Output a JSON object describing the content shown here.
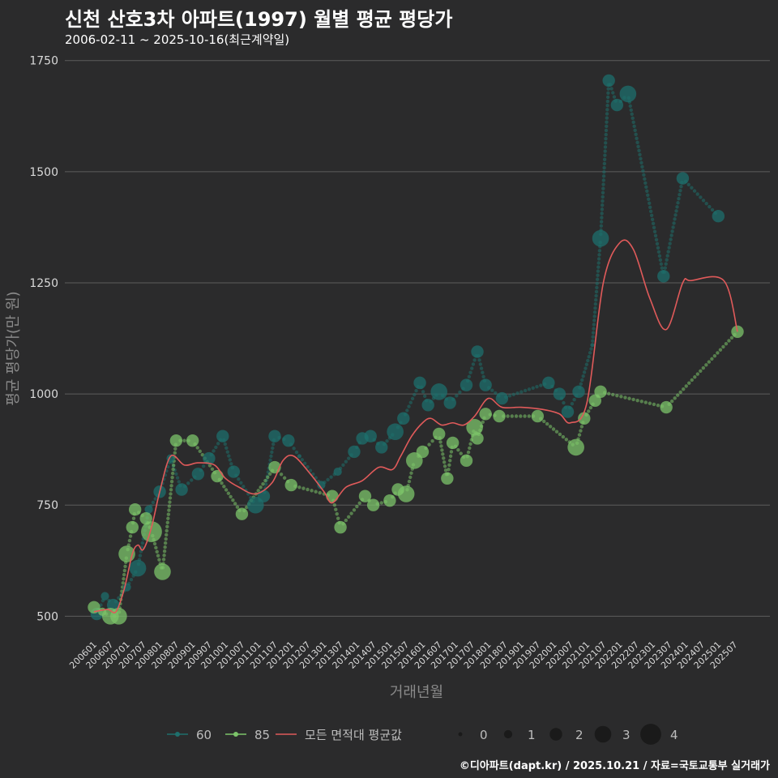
{
  "header": {
    "title": "신천 산호3차 아파트(1997) 월별 평균 평당가",
    "subtitle": "2006-02-11 ~ 2025-10-16(최근계약일)"
  },
  "caption": "©디아파트(dapt.kr) / 2025.10.21 / 자료=국토교통부 실거래가",
  "colors": {
    "background": "#2b2b2c",
    "grid": "#5c5c5c",
    "series_60": "#1e6f6c",
    "series_85": "#7cc46a",
    "average": "#e05a5a"
  },
  "chart_data": {
    "type": "line",
    "title": "신천 산호3차 아파트(1997) 월별 평균 평당가",
    "xlabel": "거래년월",
    "ylabel": "평균 평당가(만 원)",
    "ylim": [
      455,
      1755
    ],
    "yticks": [
      500,
      750,
      1000,
      1250,
      1500,
      1750
    ],
    "x_tick_labels": [
      "200601",
      "200607",
      "200701",
      "200707",
      "200801",
      "200807",
      "200901",
      "200907",
      "201001",
      "201007",
      "201101",
      "201107",
      "201201",
      "201207",
      "201301",
      "201307",
      "201401",
      "201407",
      "201501",
      "201507",
      "201601",
      "201607",
      "201701",
      "201707",
      "201801",
      "201807",
      "201901",
      "201907",
      "202001",
      "202007",
      "202101",
      "202107",
      "202201",
      "202207",
      "202301",
      "202307",
      "202401",
      "202407",
      "202501",
      "202507"
    ],
    "grid": "horizontal",
    "series": [
      {
        "name": "60",
        "points": [
          {
            "x": "2006-02",
            "y": 505,
            "size": 2
          },
          {
            "x": "2006-05",
            "y": 545,
            "size": 1
          },
          {
            "x": "2006-08",
            "y": 525,
            "size": 2
          },
          {
            "x": "2007-01",
            "y": 565,
            "size": 1
          },
          {
            "x": "2007-05",
            "y": 608,
            "size": 3
          },
          {
            "x": "2007-09",
            "y": 740,
            "size": 1
          },
          {
            "x": "2008-01",
            "y": 780,
            "size": 2
          },
          {
            "x": "2008-05",
            "y": 855,
            "size": 1
          },
          {
            "x": "2008-09",
            "y": 785,
            "size": 2
          },
          {
            "x": "2009-03",
            "y": 820,
            "size": 2
          },
          {
            "x": "2009-07",
            "y": 855,
            "size": 2
          },
          {
            "x": "2009-12",
            "y": 905,
            "size": 2
          },
          {
            "x": "2010-04",
            "y": 825,
            "size": 2
          },
          {
            "x": "2010-12",
            "y": 750,
            "size": 3
          },
          {
            "x": "2011-03",
            "y": 770,
            "size": 2
          },
          {
            "x": "2011-07",
            "y": 905,
            "size": 2
          },
          {
            "x": "2011-12",
            "y": 895,
            "size": 2
          },
          {
            "x": "2012-04",
            "y": 860,
            "size": 0
          },
          {
            "x": "2012-12",
            "y": 795,
            "size": 1
          },
          {
            "x": "2013-06",
            "y": 825,
            "size": 1
          },
          {
            "x": "2013-12",
            "y": 870,
            "size": 2
          },
          {
            "x": "2014-03",
            "y": 900,
            "size": 2
          },
          {
            "x": "2014-06",
            "y": 905,
            "size": 2
          },
          {
            "x": "2014-10",
            "y": 880,
            "size": 2
          },
          {
            "x": "2015-03",
            "y": 915,
            "size": 3
          },
          {
            "x": "2015-06",
            "y": 945,
            "size": 2
          },
          {
            "x": "2015-12",
            "y": 1025,
            "size": 2
          },
          {
            "x": "2016-03",
            "y": 975,
            "size": 2
          },
          {
            "x": "2016-07",
            "y": 1005,
            "size": 3
          },
          {
            "x": "2016-11",
            "y": 980,
            "size": 2
          },
          {
            "x": "2017-05",
            "y": 1020,
            "size": 2
          },
          {
            "x": "2017-09",
            "y": 1095,
            "size": 2
          },
          {
            "x": "2017-12",
            "y": 1020,
            "size": 2
          },
          {
            "x": "2018-06",
            "y": 990,
            "size": 2
          },
          {
            "x": "2019-11",
            "y": 1025,
            "size": 2
          },
          {
            "x": "2020-03",
            "y": 1000,
            "size": 2
          },
          {
            "x": "2020-06",
            "y": 960,
            "size": 2
          },
          {
            "x": "2020-10",
            "y": 1005,
            "size": 2
          },
          {
            "x": "2021-03",
            "y": 1110,
            "size": 0
          },
          {
            "x": "2021-06",
            "y": 1350,
            "size": 3
          },
          {
            "x": "2021-09",
            "y": 1705,
            "size": 2
          },
          {
            "x": "2021-12",
            "y": 1650,
            "size": 2
          },
          {
            "x": "2022-04",
            "y": 1675,
            "size": 3
          },
          {
            "x": "2023-05",
            "y": 1265,
            "size": 2
          },
          {
            "x": "2023-12",
            "y": 1485,
            "size": 2
          },
          {
            "x": "2025-01",
            "y": 1400,
            "size": 2
          }
        ]
      },
      {
        "name": "85",
        "points": [
          {
            "x": "2006-01",
            "y": 520,
            "size": 2
          },
          {
            "x": "2006-04",
            "y": 510,
            "size": 1
          },
          {
            "x": "2006-07",
            "y": 500,
            "size": 3
          },
          {
            "x": "2006-10",
            "y": 500,
            "size": 3
          },
          {
            "x": "2007-01",
            "y": 640,
            "size": 3
          },
          {
            "x": "2007-03",
            "y": 700,
            "size": 2
          },
          {
            "x": "2007-04",
            "y": 740,
            "size": 2
          },
          {
            "x": "2007-08",
            "y": 720,
            "size": 2
          },
          {
            "x": "2007-10",
            "y": 690,
            "size": 4
          },
          {
            "x": "2008-02",
            "y": 600,
            "size": 3
          },
          {
            "x": "2008-07",
            "y": 895,
            "size": 2
          },
          {
            "x": "2009-01",
            "y": 895,
            "size": 2
          },
          {
            "x": "2009-10",
            "y": 815,
            "size": 2
          },
          {
            "x": "2010-07",
            "y": 730,
            "size": 2
          },
          {
            "x": "2011-07",
            "y": 835,
            "size": 2
          },
          {
            "x": "2012-01",
            "y": 795,
            "size": 2
          },
          {
            "x": "2013-04",
            "y": 770,
            "size": 2
          },
          {
            "x": "2013-07",
            "y": 700,
            "size": 2
          },
          {
            "x": "2014-04",
            "y": 770,
            "size": 2
          },
          {
            "x": "2014-07",
            "y": 750,
            "size": 2
          },
          {
            "x": "2015-01",
            "y": 760,
            "size": 2
          },
          {
            "x": "2015-04",
            "y": 785,
            "size": 2
          },
          {
            "x": "2015-07",
            "y": 775,
            "size": 3
          },
          {
            "x": "2015-10",
            "y": 850,
            "size": 3
          },
          {
            "x": "2016-01",
            "y": 870,
            "size": 2
          },
          {
            "x": "2016-07",
            "y": 910,
            "size": 2
          },
          {
            "x": "2016-10",
            "y": 810,
            "size": 2
          },
          {
            "x": "2016-12",
            "y": 890,
            "size": 2
          },
          {
            "x": "2017-05",
            "y": 850,
            "size": 2
          },
          {
            "x": "2017-08",
            "y": 925,
            "size": 3
          },
          {
            "x": "2017-09",
            "y": 900,
            "size": 2
          },
          {
            "x": "2017-12",
            "y": 955,
            "size": 2
          },
          {
            "x": "2018-05",
            "y": 950,
            "size": 2
          },
          {
            "x": "2019-07",
            "y": 950,
            "size": 2
          },
          {
            "x": "2020-09",
            "y": 880,
            "size": 3
          },
          {
            "x": "2020-12",
            "y": 945,
            "size": 2
          },
          {
            "x": "2021-04",
            "y": 985,
            "size": 2
          },
          {
            "x": "2021-06",
            "y": 1005,
            "size": 2
          },
          {
            "x": "2023-06",
            "y": 970,
            "size": 2
          },
          {
            "x": "2025-08",
            "y": 1140,
            "size": 2
          }
        ]
      },
      {
        "name": "모든 면적대 평균값",
        "points": [
          {
            "x": "2006-01",
            "y": 510
          },
          {
            "x": "2006-06",
            "y": 515
          },
          {
            "x": "2006-09",
            "y": 510
          },
          {
            "x": "2006-12",
            "y": 560
          },
          {
            "x": "2007-03",
            "y": 640
          },
          {
            "x": "2007-05",
            "y": 660
          },
          {
            "x": "2007-07",
            "y": 650
          },
          {
            "x": "2007-10",
            "y": 700
          },
          {
            "x": "2008-01",
            "y": 780
          },
          {
            "x": "2008-05",
            "y": 860
          },
          {
            "x": "2008-10",
            "y": 840
          },
          {
            "x": "2009-03",
            "y": 845
          },
          {
            "x": "2009-09",
            "y": 840
          },
          {
            "x": "2010-01",
            "y": 810
          },
          {
            "x": "2010-06",
            "y": 790
          },
          {
            "x": "2010-12",
            "y": 775
          },
          {
            "x": "2011-06",
            "y": 800
          },
          {
            "x": "2011-10",
            "y": 850
          },
          {
            "x": "2012-02",
            "y": 860
          },
          {
            "x": "2012-08",
            "y": 820
          },
          {
            "x": "2013-01",
            "y": 780
          },
          {
            "x": "2013-04",
            "y": 755
          },
          {
            "x": "2013-09",
            "y": 790
          },
          {
            "x": "2014-03",
            "y": 805
          },
          {
            "x": "2014-09",
            "y": 835
          },
          {
            "x": "2015-02",
            "y": 830
          },
          {
            "x": "2015-05",
            "y": 860
          },
          {
            "x": "2015-09",
            "y": 905
          },
          {
            "x": "2016-01",
            "y": 935
          },
          {
            "x": "2016-04",
            "y": 945
          },
          {
            "x": "2016-08",
            "y": 930
          },
          {
            "x": "2016-12",
            "y": 935
          },
          {
            "x": "2017-04",
            "y": 930
          },
          {
            "x": "2017-08",
            "y": 950
          },
          {
            "x": "2018-01",
            "y": 990
          },
          {
            "x": "2018-06",
            "y": 970
          },
          {
            "x": "2019-01",
            "y": 970
          },
          {
            "x": "2019-09",
            "y": 965
          },
          {
            "x": "2020-03",
            "y": 955
          },
          {
            "x": "2020-07",
            "y": 935
          },
          {
            "x": "2021-01",
            "y": 980
          },
          {
            "x": "2021-07",
            "y": 1250
          },
          {
            "x": "2022-01",
            "y": 1340
          },
          {
            "x": "2022-06",
            "y": 1325
          },
          {
            "x": "2022-12",
            "y": 1215
          },
          {
            "x": "2023-06",
            "y": 1145
          },
          {
            "x": "2023-12",
            "y": 1250
          },
          {
            "x": "2024-03",
            "y": 1255
          },
          {
            "x": "2025-03",
            "y": 1255
          },
          {
            "x": "2025-08",
            "y": 1140
          }
        ]
      }
    ],
    "legend": {
      "position": "bottom",
      "series_labels": [
        "60",
        "85",
        "모든 면적대 평균값"
      ],
      "size_labels": [
        "0",
        "1",
        "2",
        "3",
        "4"
      ]
    }
  }
}
